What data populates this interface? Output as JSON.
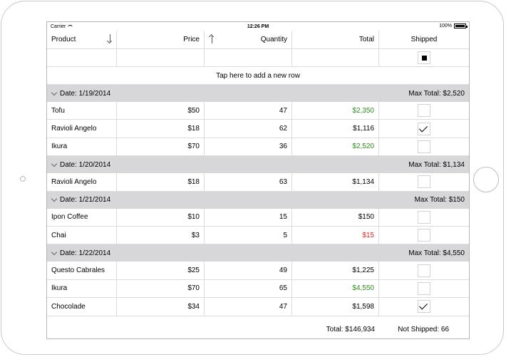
{
  "status": {
    "carrier": "Carrier",
    "time": "12:26 PM",
    "battery": "100%"
  },
  "columns": [
    "Product",
    "Price",
    "Quantity",
    "Total",
    "Shipped"
  ],
  "new_row_hint": "Tap here to add a new row",
  "groups": [
    {
      "label": "Date: 1/19/2014",
      "summary": "Max Total: $2,520",
      "rows": [
        {
          "product": "Tofu",
          "price": "$50",
          "quantity": "47",
          "total": "$2,350",
          "total_color": "green",
          "shipped": false
        },
        {
          "product": "Ravioli Angelo",
          "price": "$18",
          "quantity": "62",
          "total": "$1,116",
          "total_color": "black",
          "shipped": true
        },
        {
          "product": "Ikura",
          "price": "$70",
          "quantity": "36",
          "total": "$2,520",
          "total_color": "green",
          "shipped": false
        }
      ]
    },
    {
      "label": "Date: 1/20/2014",
      "summary": "Max Total: $1,134",
      "rows": [
        {
          "product": "Ravioli Angelo",
          "price": "$18",
          "quantity": "63",
          "total": "$1,134",
          "total_color": "black",
          "shipped": false
        }
      ]
    },
    {
      "label": "Date: 1/21/2014",
      "summary": "Max Total: $150",
      "rows": [
        {
          "product": "Ipon Coffee",
          "price": "$10",
          "quantity": "15",
          "total": "$150",
          "total_color": "black",
          "shipped": false
        },
        {
          "product": "Chai",
          "price": "$3",
          "quantity": "5",
          "total": "$15",
          "total_color": "red",
          "shipped": false
        }
      ]
    },
    {
      "label": "Date: 1/22/2014",
      "summary": "Max Total: $4,550",
      "rows": [
        {
          "product": "Questo Cabrales",
          "price": "$25",
          "quantity": "49",
          "total": "$1,225",
          "total_color": "black",
          "shipped": false
        },
        {
          "product": "Ikura",
          "price": "$70",
          "quantity": "65",
          "total": "$4,550",
          "total_color": "green",
          "shipped": false
        },
        {
          "product": "Chocolade",
          "price": "$34",
          "quantity": "47",
          "total": "$1,598",
          "total_color": "black",
          "shipped": true
        }
      ]
    }
  ],
  "footer": {
    "total": "Total: $146,934",
    "not_shipped": "Not Shipped: 66"
  },
  "colors": {
    "green": "#2e8b1e",
    "red": "#e4261c",
    "group_bg": "#d7d7da"
  }
}
